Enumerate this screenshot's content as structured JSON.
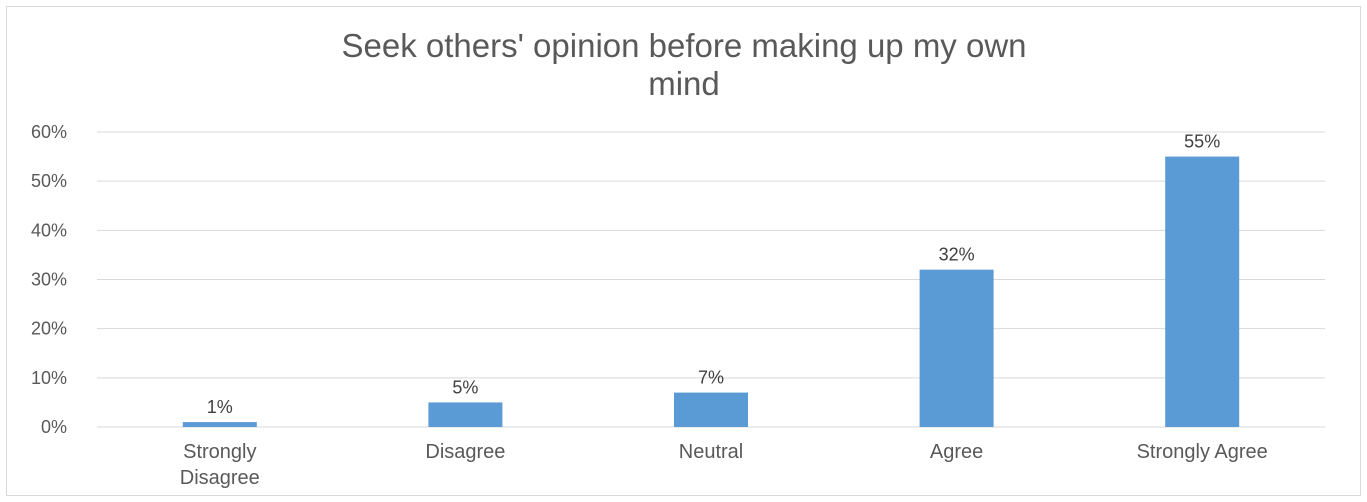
{
  "chart_data": {
    "type": "bar",
    "title": "Seek others' opinion before making up my own mind",
    "title_lines": [
      "Seek others' opinion before making up my own",
      "mind"
    ],
    "categories": [
      "Strongly Disagree",
      "Disagree",
      "Neutral",
      "Agree",
      "Strongly Agree"
    ],
    "category_lines": [
      [
        "Strongly",
        "Disagree"
      ],
      [
        "Disagree"
      ],
      [
        "Neutral"
      ],
      [
        "Agree"
      ],
      [
        "Strongly Agree"
      ]
    ],
    "values": [
      1,
      5,
      7,
      32,
      55
    ],
    "data_labels": [
      "1%",
      "5%",
      "7%",
      "32%",
      "55%"
    ],
    "ylim": [
      0,
      60
    ],
    "yticks": [
      0,
      10,
      20,
      30,
      40,
      50,
      60
    ],
    "ytick_labels": [
      "0%",
      "10%",
      "20%",
      "30%",
      "40%",
      "50%",
      "60%"
    ],
    "xlabel": "",
    "ylabel": "",
    "grid": true,
    "legend": "none",
    "bar_color": "#5b9bd5"
  }
}
